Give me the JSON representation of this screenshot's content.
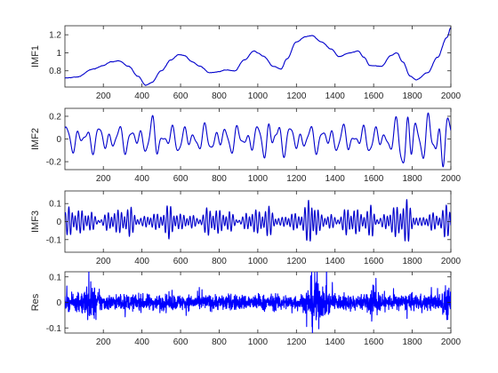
{
  "chart_data": [
    {
      "type": "line",
      "ylabel": "IMF1",
      "xlim": [
        1,
        2000
      ],
      "ylim": [
        0.62,
        1.3
      ],
      "xticks": [
        200,
        400,
        600,
        800,
        1000,
        1200,
        1400,
        1600,
        1800,
        2000
      ],
      "yticks": [
        0.8,
        1,
        1.2
      ],
      "ytick_labels": [
        "0.8",
        "1",
        "1.2"
      ],
      "color": "#0000cc",
      "series": [
        {
          "anchors_x": [
            1,
            60,
            150,
            200,
            240,
            280,
            330,
            380,
            420,
            450,
            500,
            550,
            590,
            620,
            660,
            700,
            750,
            800,
            830,
            880,
            930,
            980,
            1000,
            1030,
            1080,
            1120,
            1150,
            1200,
            1250,
            1280,
            1330,
            1380,
            1420,
            1480,
            1520,
            1550,
            1580,
            1640,
            1690,
            1720,
            1750,
            1790,
            1820,
            1880,
            1930,
            1980,
            2000
          ],
          "anchors_y": [
            0.72,
            0.73,
            0.82,
            0.86,
            0.9,
            0.91,
            0.85,
            0.74,
            0.64,
            0.67,
            0.8,
            0.92,
            0.98,
            0.97,
            0.9,
            0.85,
            0.78,
            0.79,
            0.81,
            0.8,
            0.92,
            1.02,
            1.0,
            0.96,
            0.85,
            0.82,
            0.93,
            1.12,
            1.18,
            1.19,
            1.12,
            1.04,
            0.96,
            1.0,
            1.02,
            0.95,
            0.86,
            0.85,
            0.97,
            1.0,
            0.9,
            0.74,
            0.7,
            0.78,
            0.95,
            1.17,
            1.28
          ],
          "noise": 0.006
        }
      ]
    },
    {
      "type": "line",
      "ylabel": "IMF2",
      "xlim": [
        1,
        2000
      ],
      "ylim": [
        -0.27,
        0.27
      ],
      "xticks": [
        200,
        400,
        600,
        800,
        1000,
        1200,
        1400,
        1600,
        1800,
        2000
      ],
      "yticks": [
        -0.2,
        0,
        0.2
      ],
      "ytick_labels": [
        "-0.2",
        "0",
        "0.2"
      ],
      "color": "#0000cc",
      "series": [
        {
          "components": [
            {
              "amp": 0.07,
              "period": 55,
              "phase": 0.3
            },
            {
              "amp": 0.05,
              "period": 90,
              "phase": 1.2
            },
            {
              "amp": 0.025,
              "period": 33,
              "phase": 2.1
            }
          ],
          "bursts": [
            {
              "center": 1080,
              "width": 40,
              "gain": 2.3
            },
            {
              "center": 1770,
              "width": 40,
              "gain": 3.4
            },
            {
              "center": 1930,
              "width": 55,
              "gain": 3.0
            },
            {
              "center": 460,
              "width": 30,
              "gain": 1.6
            }
          ]
        }
      ]
    },
    {
      "type": "line",
      "ylabel": "IMF3",
      "xlim": [
        1,
        2000
      ],
      "ylim": [
        -0.17,
        0.17
      ],
      "xticks": [
        200,
        400,
        600,
        800,
        1000,
        1200,
        1400,
        1600,
        1800,
        2000
      ],
      "yticks": [
        -0.1,
        0,
        0.1
      ],
      "ytick_labels": [
        "-0.1",
        "0",
        "0.1"
      ],
      "color": "#0000cc",
      "series": [
        {
          "components": [
            {
              "amp": 0.05,
              "period": 17,
              "phase": 0.1
            },
            {
              "amp": 0.025,
              "period": 23,
              "phase": 1.7
            }
          ],
          "modulation_period": 240,
          "bursts": [
            {
              "center": 1600,
              "width": 18,
              "gain": 2.6
            },
            {
              "center": 1290,
              "width": 25,
              "gain": 2.0
            },
            {
              "center": 1750,
              "width": 40,
              "gain": 1.6
            }
          ]
        }
      ]
    },
    {
      "type": "line",
      "ylabel": "Res",
      "xlim": [
        1,
        2000
      ],
      "ylim": [
        -0.12,
        0.12
      ],
      "xticks": [
        200,
        400,
        600,
        800,
        1000,
        1200,
        1400,
        1600,
        1800,
        2000
      ],
      "yticks": [
        -0.1,
        0,
        0.1
      ],
      "ytick_labels": [
        "-0.1",
        "0",
        "0.1"
      ],
      "color": "#0000ff",
      "series": [
        {
          "noise_amp": 0.03,
          "bursts": [
            {
              "center": 130,
              "width": 40,
              "gain": 2.6
            },
            {
              "center": 1290,
              "width": 30,
              "gain": 3.5
            },
            {
              "center": 1600,
              "width": 20,
              "gain": 3.2
            },
            {
              "center": 1330,
              "width": 60,
              "gain": 1.8
            },
            {
              "center": 1980,
              "width": 30,
              "gain": 2.2
            }
          ]
        }
      ]
    }
  ]
}
